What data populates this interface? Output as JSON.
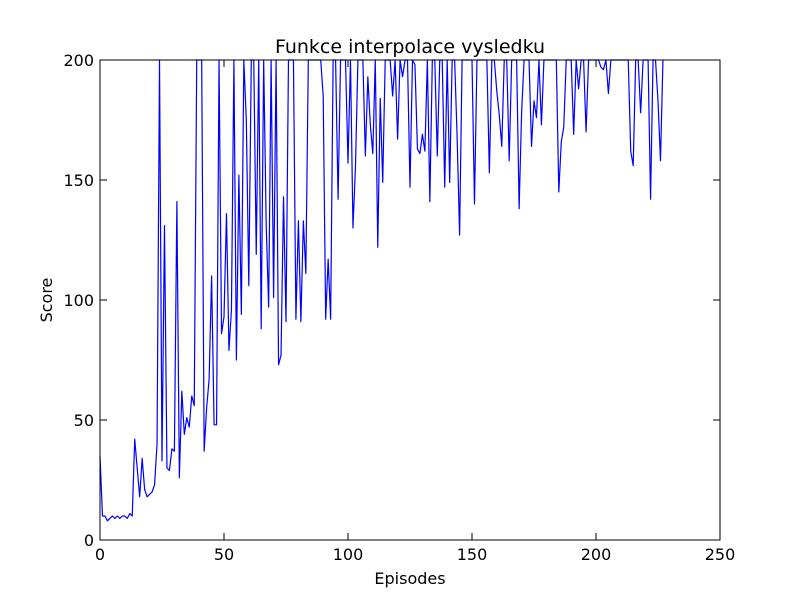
{
  "chart_data": {
    "type": "line",
    "title": "Funkce interpolace vysledku",
    "xlabel": "Episodes",
    "ylabel": "Score",
    "xlim": [
      0,
      250
    ],
    "ylim": [
      0,
      200
    ],
    "xticks": [
      0,
      50,
      100,
      150,
      200,
      250
    ],
    "yticks": [
      0,
      50,
      100,
      150,
      200
    ],
    "grid": false,
    "line_color": "#0000ff",
    "series": [
      {
        "values": [
          35,
          10,
          10,
          8,
          9,
          10,
          9,
          10,
          9,
          10,
          10,
          9,
          11,
          10,
          42,
          30,
          18,
          34,
          21,
          18,
          19,
          20,
          23,
          40,
          200,
          33,
          131,
          30,
          29,
          38,
          37,
          141,
          26,
          62,
          44,
          51,
          47,
          60,
          56,
          200,
          200,
          200,
          37,
          55,
          67,
          110,
          48,
          48,
          200,
          86,
          93,
          136,
          79,
          96,
          200,
          75,
          152,
          94,
          200,
          175,
          106,
          200,
          200,
          119,
          200,
          88,
          200,
          132,
          97,
          200,
          101,
          200,
          73,
          77,
          143,
          91,
          200,
          200,
          200,
          92,
          133,
          91,
          133,
          111,
          200,
          200,
          200,
          200,
          200,
          200,
          185,
          92,
          117,
          92,
          200,
          200,
          142,
          200,
          200,
          200,
          157,
          200,
          130,
          155,
          200,
          200,
          200,
          160,
          193,
          173,
          161,
          200,
          122,
          184,
          149,
          200,
          200,
          200,
          185,
          200,
          167,
          200,
          193,
          200,
          200,
          147,
          200,
          198,
          163,
          161,
          169,
          162,
          200,
          141,
          200,
          200,
          160,
          200,
          200,
          147,
          200,
          149,
          200,
          200,
          168,
          127,
          200,
          200,
          200,
          200,
          200,
          140,
          200,
          200,
          200,
          200,
          200,
          153,
          200,
          200,
          187,
          177,
          164,
          200,
          200,
          158,
          200,
          200,
          200,
          138,
          178,
          200,
          200,
          200,
          164,
          183,
          176,
          200,
          173,
          200,
          200,
          200,
          200,
          200,
          200,
          145,
          166,
          172,
          200,
          200,
          200,
          169,
          200,
          188,
          200,
          200,
          170,
          200,
          200,
          200,
          200,
          200,
          197,
          196,
          200,
          186,
          200,
          200,
          200,
          200,
          200,
          200,
          200,
          200,
          162,
          156,
          200,
          200,
          178,
          200,
          200,
          200,
          142,
          200,
          200,
          183,
          158,
          200
        ]
      }
    ]
  }
}
